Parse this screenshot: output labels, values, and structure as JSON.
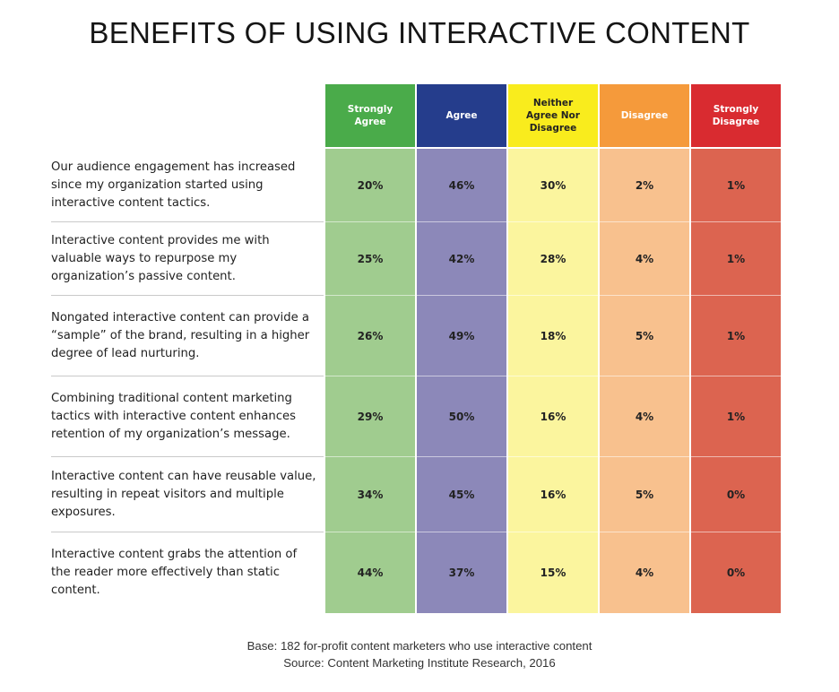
{
  "title": "BENEFITS OF USING INTERACTIVE CONTENT",
  "chart_data": {
    "type": "table",
    "columns": [
      {
        "label": "Strongly Agree",
        "header_color": "#4aab4a",
        "cell_color": "#a0cc8f",
        "text_dark": false
      },
      {
        "label": "Agree",
        "header_color": "#253d8c",
        "cell_color": "#8c88b9",
        "text_dark": false
      },
      {
        "label": "Neither Agree Nor Disagree",
        "header_color": "#f9ec1d",
        "cell_color": "#fbf59e",
        "text_dark": true
      },
      {
        "label": "Disagree",
        "header_color": "#f59a3b",
        "cell_color": "#f8c18e",
        "text_dark": false
      },
      {
        "label": "Strongly Disagree",
        "header_color": "#d92b30",
        "cell_color": "#dc6450",
        "text_dark": false
      }
    ],
    "rows": [
      {
        "statement": "Our audience engagement has increased since my organization started using interactive content tactics.",
        "values": [
          "20%",
          "46%",
          "30%",
          "2%",
          "1%"
        ]
      },
      {
        "statement": "Interactive content provides me with valuable ways to repurpose my organization’s passive content.",
        "values": [
          "25%",
          "42%",
          "28%",
          "4%",
          "1%"
        ]
      },
      {
        "statement": "Nongated interactive content can provide a “sample” of the brand, resulting in a higher degree of lead nurturing.",
        "values": [
          "26%",
          "49%",
          "18%",
          "5%",
          "1%"
        ]
      },
      {
        "statement": "Combining traditional content marketing tactics with interactive content enhances retention of my organization’s message.",
        "values": [
          "29%",
          "50%",
          "16%",
          "4%",
          "1%"
        ]
      },
      {
        "statement": "Interactive content can have reusable value, resulting in repeat visitors and multiple exposures.",
        "values": [
          "34%",
          "45%",
          "16%",
          "5%",
          "0%"
        ]
      },
      {
        "statement": "Interactive content grabs the attention of the reader more effectively than static content.",
        "values": [
          "44%",
          "37%",
          "15%",
          "4%",
          "0%"
        ]
      }
    ]
  },
  "footer": {
    "base": "Base: 182 for-profit content marketers who use interactive content",
    "source": "Source: Content Marketing Institute Research, 2016"
  }
}
